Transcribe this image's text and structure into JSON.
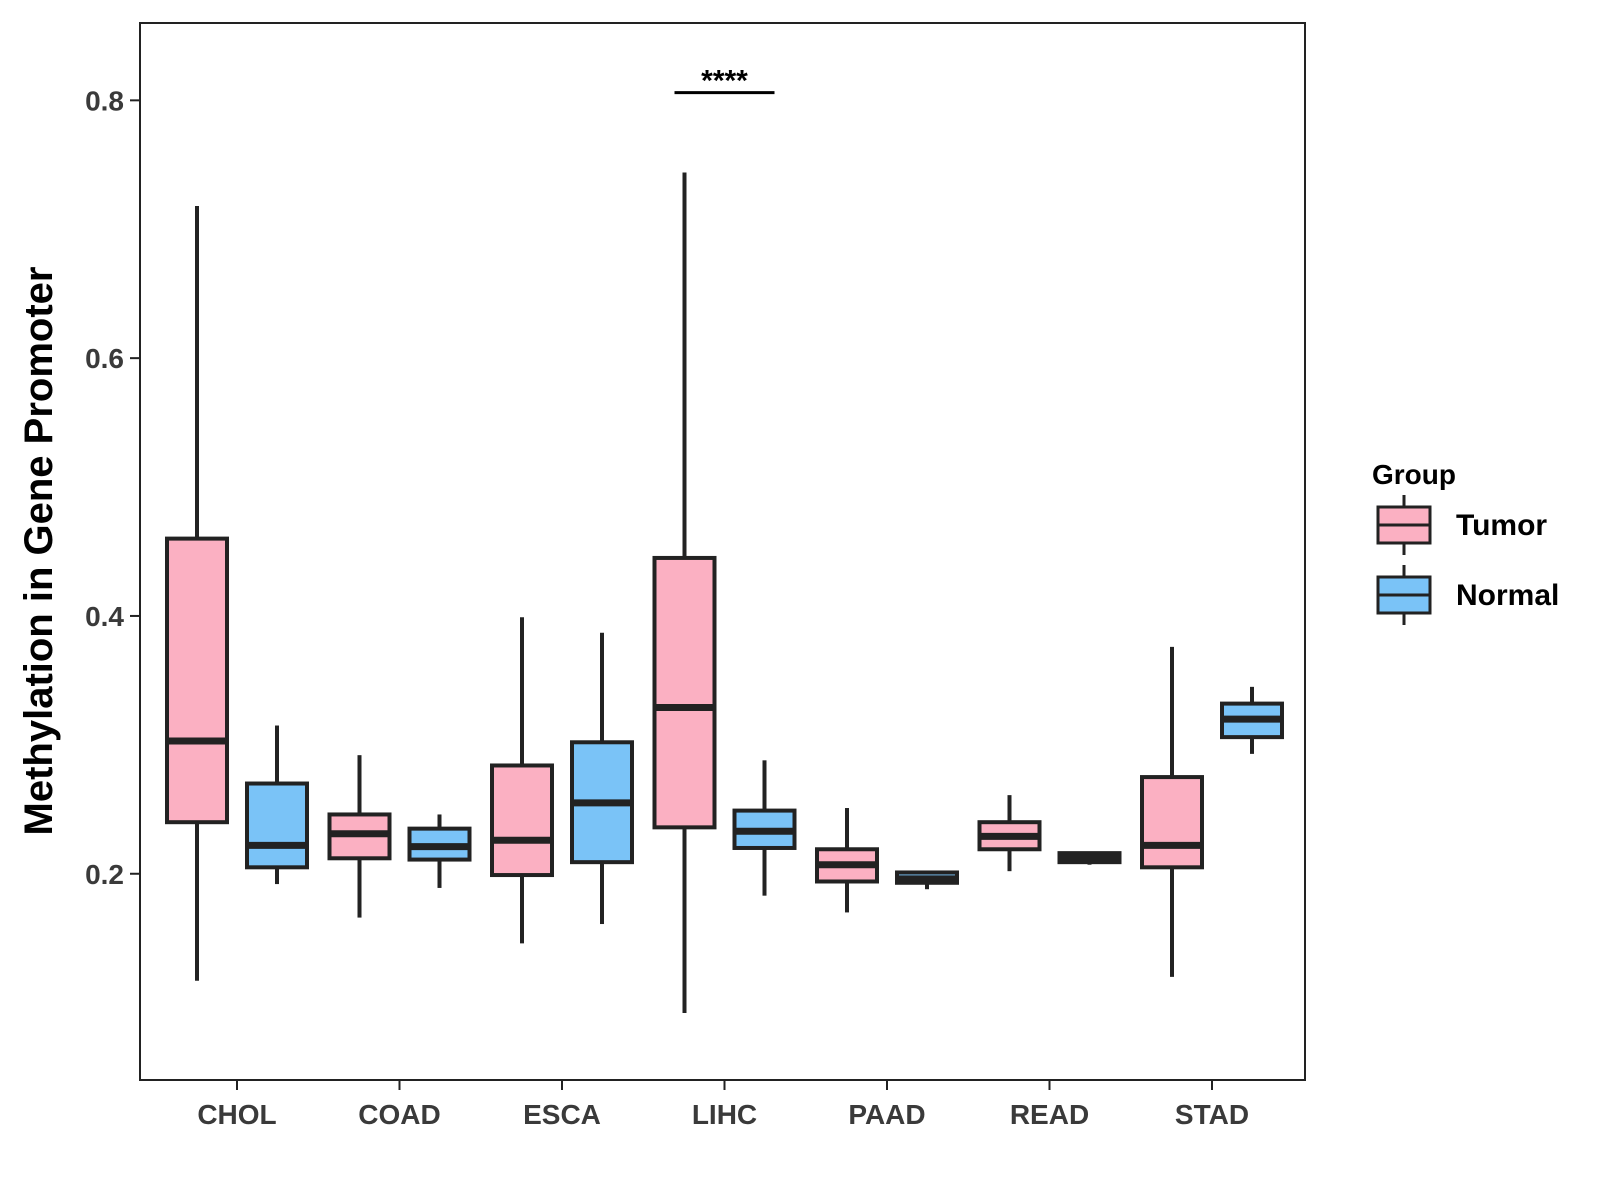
{
  "chart_data": {
    "type": "boxplot",
    "xlabel": "",
    "ylabel": "Methylation in Gene Promoter",
    "ylim": [
      0.04,
      0.86
    ],
    "yticks": [
      0.2,
      0.4,
      0.6,
      0.8
    ],
    "ytick_labels": [
      "0.2",
      "0.4",
      "0.6",
      "0.8"
    ],
    "categories": [
      "CHOL",
      "COAD",
      "ESCA",
      "LIHC",
      "PAAD",
      "READ",
      "STAD"
    ],
    "legend": {
      "title": "Group",
      "position": "right",
      "entries": [
        {
          "name": "Tumor",
          "color": "#FBB0C2"
        },
        {
          "name": "Normal",
          "color": "#7AC3F7"
        }
      ]
    },
    "series": [
      {
        "name": "Tumor",
        "color": "#FBB0C2",
        "boxes": [
          {
            "category": "CHOL",
            "min": 0.117,
            "q1": 0.24,
            "median": 0.303,
            "q3": 0.46,
            "max": 0.718
          },
          {
            "category": "COAD",
            "min": 0.166,
            "q1": 0.212,
            "median": 0.231,
            "q3": 0.246,
            "max": 0.292
          },
          {
            "category": "ESCA",
            "min": 0.146,
            "q1": 0.199,
            "median": 0.226,
            "q3": 0.284,
            "max": 0.399
          },
          {
            "category": "LIHC",
            "min": 0.092,
            "q1": 0.236,
            "median": 0.329,
            "q3": 0.445,
            "max": 0.744
          },
          {
            "category": "PAAD",
            "min": 0.17,
            "q1": 0.194,
            "median": 0.207,
            "q3": 0.219,
            "max": 0.251
          },
          {
            "category": "READ",
            "min": 0.202,
            "q1": 0.219,
            "median": 0.229,
            "q3": 0.24,
            "max": 0.261
          },
          {
            "category": "STAD",
            "min": 0.12,
            "q1": 0.205,
            "median": 0.222,
            "q3": 0.275,
            "max": 0.376
          }
        ]
      },
      {
        "name": "Normal",
        "color": "#7AC3F7",
        "boxes": [
          {
            "category": "CHOL",
            "min": 0.192,
            "q1": 0.205,
            "median": 0.222,
            "q3": 0.27,
            "max": 0.315
          },
          {
            "category": "COAD",
            "min": 0.189,
            "q1": 0.211,
            "median": 0.221,
            "q3": 0.235,
            "max": 0.246
          },
          {
            "category": "ESCA",
            "min": 0.161,
            "q1": 0.209,
            "median": 0.255,
            "q3": 0.302,
            "max": 0.387
          },
          {
            "category": "LIHC",
            "min": 0.183,
            "q1": 0.22,
            "median": 0.233,
            "q3": 0.249,
            "max": 0.288
          },
          {
            "category": "PAAD",
            "min": 0.188,
            "q1": 0.193,
            "median": 0.196,
            "q3": 0.201,
            "max": 0.202
          },
          {
            "category": "READ",
            "min": 0.207,
            "q1": 0.209,
            "median": 0.213,
            "q3": 0.216,
            "max": 0.217
          },
          {
            "category": "STAD",
            "min": 0.293,
            "q1": 0.306,
            "median": 0.32,
            "q3": 0.332,
            "max": 0.345
          }
        ]
      }
    ],
    "annotations": [
      {
        "category": "LIHC",
        "text": "****",
        "y": 0.806
      }
    ]
  }
}
